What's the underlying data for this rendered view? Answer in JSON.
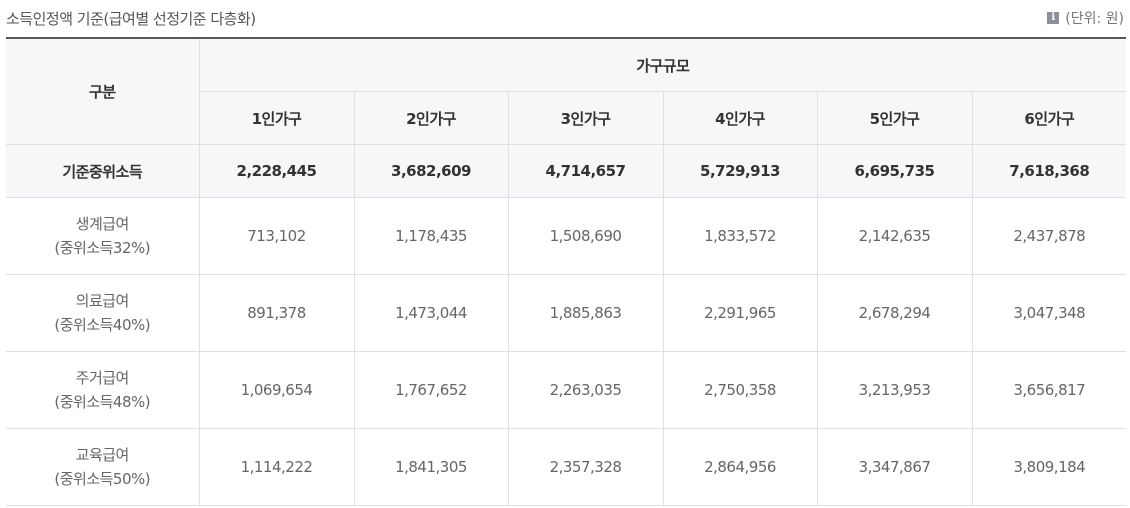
{
  "caption": {
    "title": "소득인정액 기준(급여별 선정기준 다층화)",
    "unit": "(단위: 원)",
    "unit_icon": "info-icon"
  },
  "table": {
    "corner_header": "구분",
    "group_header": "가구규모",
    "columns": [
      "1인가구",
      "2인가구",
      "3인가구",
      "4인가구",
      "5인가구",
      "6인가구"
    ],
    "median": {
      "label": "기준중위소득",
      "values": [
        "2,228,445",
        "3,682,609",
        "4,714,657",
        "5,729,913",
        "6,695,735",
        "7,618,368"
      ]
    },
    "rows": [
      {
        "name": "생계급여",
        "ratio": "(중위소득32%)",
        "values": [
          "713,102",
          "1,178,435",
          "1,508,690",
          "1,833,572",
          "2,142,635",
          "2,437,878"
        ]
      },
      {
        "name": "의료급여",
        "ratio": "(중위소득40%)",
        "values": [
          "891,378",
          "1,473,044",
          "1,885,863",
          "2,291,965",
          "2,678,294",
          "3,047,348"
        ]
      },
      {
        "name": "주거급여",
        "ratio": "(중위소득48%)",
        "values": [
          "1,069,654",
          "1,767,652",
          "2,263,035",
          "2,750,358",
          "3,213,953",
          "3,656,817"
        ]
      },
      {
        "name": "교육급여",
        "ratio": "(중위소득50%)",
        "values": [
          "1,114,222",
          "1,841,305",
          "2,357,328",
          "2,864,956",
          "3,347,867",
          "3,809,184"
        ]
      }
    ]
  }
}
